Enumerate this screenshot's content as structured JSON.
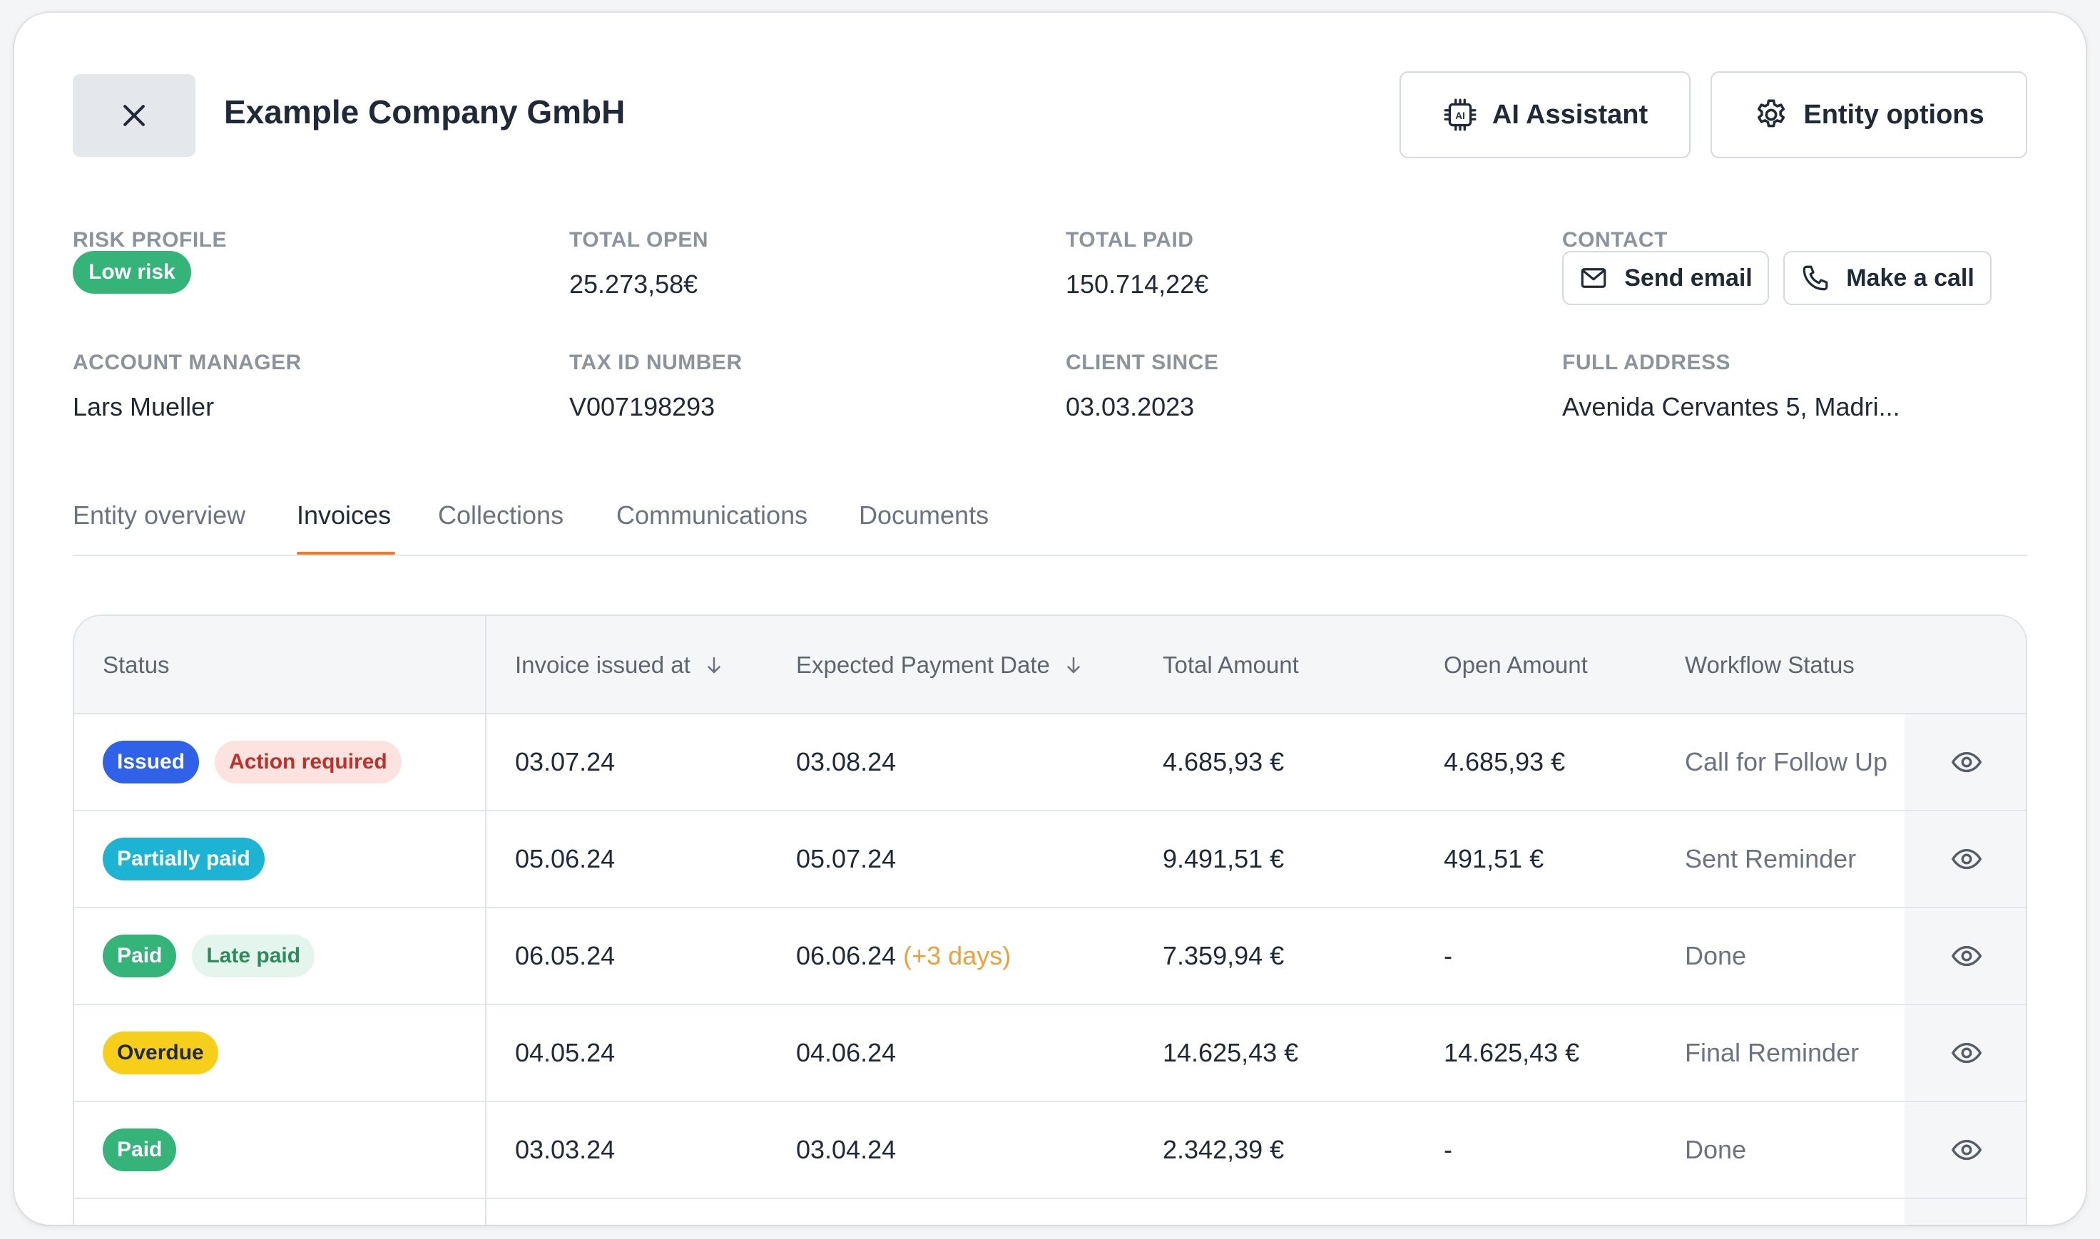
{
  "header": {
    "title": "Example Company GmbH",
    "ai_label": "AI Assistant",
    "options_label": "Entity options"
  },
  "info": {
    "risk_label": "RISK PROFILE",
    "risk_value": "Low risk",
    "open_label": "TOTAL OPEN",
    "open_value": "25.273,58€",
    "paid_label": "TOTAL PAID",
    "paid_value": "150.714,22€",
    "contact_label": "CONTACT",
    "email_label": "Send email",
    "call_label": "Make a call",
    "manager_label": "ACCOUNT MANAGER",
    "manager_value": "Lars Mueller",
    "tax_label": "TAX ID NUMBER",
    "tax_value": "V007198293",
    "since_label": "CLIENT SINCE",
    "since_value": "03.03.2023",
    "address_label": "FULL ADDRESS",
    "address_value": "Avenida Cervantes 5, Madri..."
  },
  "tabs": [
    {
      "label": "Entity overview"
    },
    {
      "label": "Invoices"
    },
    {
      "label": "Collections"
    },
    {
      "label": "Communications"
    },
    {
      "label": "Documents"
    }
  ],
  "active_tab": "Invoices",
  "table": {
    "columns": [
      "Status",
      "Invoice issued at",
      "Expected Payment Date",
      "Total Amount",
      "Open Amount",
      "Workflow Status"
    ],
    "rows": [
      {
        "badges": [
          {
            "text": "Issued",
            "bg": "#2f62e8",
            "fg": "#ffffff"
          },
          {
            "text": "Action required",
            "bg": "#fde3df",
            "fg": "#c0302a"
          }
        ],
        "issued": "03.07.24",
        "expected": "03.08.24",
        "expected_note": "",
        "total": "4.685,93 €",
        "open": "4.685,93 €",
        "workflow": "Call for Follow Up"
      },
      {
        "badges": [
          {
            "text": "Partially paid",
            "bg": "#1db4d4",
            "fg": "#ffffff"
          }
        ],
        "issued": "05.06.24",
        "expected": "05.07.24",
        "expected_note": "",
        "total": "9.491,51 €",
        "open": "491,51 €",
        "workflow": "Sent Reminder"
      },
      {
        "badges": [
          {
            "text": "Paid",
            "bg": "#35b47a",
            "fg": "#ffffff"
          },
          {
            "text": "Late paid",
            "bg": "#e3f5ec",
            "fg": "#2f8a5c"
          }
        ],
        "issued": "06.05.24",
        "expected": "06.06.24",
        "expected_note": "(+3 days)",
        "total": "7.359,94 €",
        "open": "-",
        "workflow": "Done"
      },
      {
        "badges": [
          {
            "text": "Overdue",
            "bg": "#f7cf1a",
            "fg": "#1f2937"
          }
        ],
        "issued": "04.05.24",
        "expected": "04.06.24",
        "expected_note": "",
        "total": "14.625,43 €",
        "open": "14.625,43 €",
        "workflow": "Final Reminder"
      },
      {
        "badges": [
          {
            "text": "Paid",
            "bg": "#35b47a",
            "fg": "#ffffff"
          }
        ],
        "issued": "03.03.24",
        "expected": "03.04.24",
        "expected_note": "",
        "total": "2.342,39 €",
        "open": "-",
        "workflow": "Done"
      }
    ]
  },
  "colors": {
    "accent_tab": "#e67e2e",
    "risk_low": "#35b47a",
    "late_note": "#e9a13b"
  }
}
